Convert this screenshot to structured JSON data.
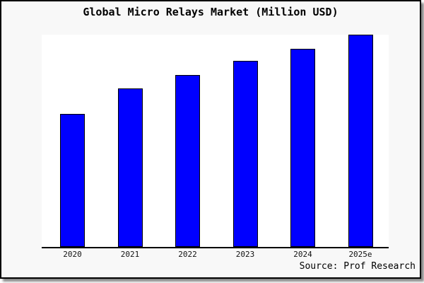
{
  "window": {
    "background_color": "#f8f8f8",
    "plot_background_color": "#ffffff",
    "border_color": "#000000",
    "shadow_color": "#8a8a8a"
  },
  "chart": {
    "title": "Global Micro Relays Market (Million USD)",
    "source_note": "Source: Prof Research",
    "bar_color": "#0000ff",
    "bar_border_color": "#000000",
    "axis_color": "#000000"
  },
  "chart_data": {
    "type": "bar",
    "title": "Global Micro Relays Market (Million USD)",
    "categories": [
      "2020",
      "2021",
      "2022",
      "2023",
      "2024",
      "2025e"
    ],
    "values": [
      62.5,
      74.8,
      81.1,
      87.7,
      93.4,
      100
    ],
    "values_note": "relative bar heights as % of tallest bar; no numeric y-axis shown in chart",
    "series_name": "Global Micro Relays Market (Million USD)",
    "xlabel": "",
    "ylabel": "",
    "grid": false,
    "y_axis_shown": false,
    "legend": null,
    "annotations": [
      "Source: Prof Research"
    ]
  }
}
